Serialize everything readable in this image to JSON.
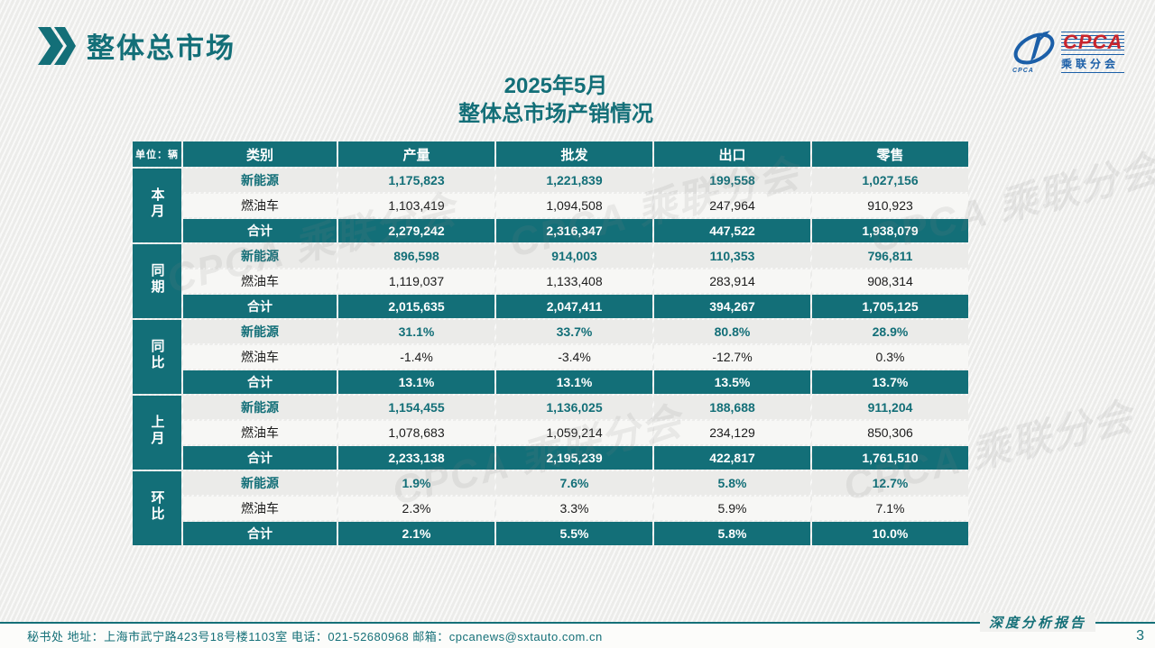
{
  "colors": {
    "teal": "#136f78",
    "nev_text": "#136f78",
    "logo_blue": "#1b5fa8",
    "logo_red": "#c8242c",
    "row_nev_bg": "#ebebe9",
    "row_fuel_bg": "#f7f7f5"
  },
  "header": {
    "page_title": "整体总市场",
    "subtitle_line1": "2025年5月",
    "subtitle_line2": "整体总市场产销情况"
  },
  "logo": {
    "main": "CPCA",
    "sub": "乘联分会",
    "swoosh_caption": "CPCA"
  },
  "watermark": {
    "text": "CPCA 乘联分会"
  },
  "table": {
    "unit_label": "单位：辆",
    "columns": [
      "类别",
      "产量",
      "批发",
      "出口",
      "零售"
    ],
    "groups": [
      {
        "label": "本月",
        "rows": [
          {
            "category": "新能源",
            "style": "nev",
            "values": [
              "1,175,823",
              "1,221,839",
              "199,558",
              "1,027,156"
            ]
          },
          {
            "category": "燃油车",
            "style": "fuel",
            "values": [
              "1,103,419",
              "1,094,508",
              "247,964",
              "910,923"
            ]
          },
          {
            "category": "合计",
            "style": "total",
            "values": [
              "2,279,242",
              "2,316,347",
              "447,522",
              "1,938,079"
            ]
          }
        ]
      },
      {
        "label": "同期",
        "rows": [
          {
            "category": "新能源",
            "style": "nev",
            "values": [
              "896,598",
              "914,003",
              "110,353",
              "796,811"
            ]
          },
          {
            "category": "燃油车",
            "style": "fuel",
            "values": [
              "1,119,037",
              "1,133,408",
              "283,914",
              "908,314"
            ]
          },
          {
            "category": "合计",
            "style": "total",
            "values": [
              "2,015,635",
              "2,047,411",
              "394,267",
              "1,705,125"
            ]
          }
        ]
      },
      {
        "label": "同比",
        "rows": [
          {
            "category": "新能源",
            "style": "nev",
            "values": [
              "31.1%",
              "33.7%",
              "80.8%",
              "28.9%"
            ]
          },
          {
            "category": "燃油车",
            "style": "fuel",
            "values": [
              "-1.4%",
              "-3.4%",
              "-12.7%",
              "0.3%"
            ]
          },
          {
            "category": "合计",
            "style": "total",
            "values": [
              "13.1%",
              "13.1%",
              "13.5%",
              "13.7%"
            ]
          }
        ]
      },
      {
        "label": "上月",
        "rows": [
          {
            "category": "新能源",
            "style": "nev",
            "values": [
              "1,154,455",
              "1,136,025",
              "188,688",
              "911,204"
            ]
          },
          {
            "category": "燃油车",
            "style": "fuel",
            "values": [
              "1,078,683",
              "1,059,214",
              "234,129",
              "850,306"
            ]
          },
          {
            "category": "合计",
            "style": "total",
            "values": [
              "2,233,138",
              "2,195,239",
              "422,817",
              "1,761,510"
            ]
          }
        ]
      },
      {
        "label": "环比",
        "rows": [
          {
            "category": "新能源",
            "style": "nev",
            "values": [
              "1.9%",
              "7.6%",
              "5.8%",
              "12.7%"
            ]
          },
          {
            "category": "燃油车",
            "style": "fuel",
            "values": [
              "2.3%",
              "3.3%",
              "5.9%",
              "7.1%"
            ]
          },
          {
            "category": "合计",
            "style": "total",
            "values": [
              "2.1%",
              "5.5%",
              "5.8%",
              "10.0%"
            ]
          }
        ]
      }
    ]
  },
  "footer": {
    "secretariat_line": "秘书处   地址：上海市武宁路423号18号楼1103室  电话：021-52680968   邮箱：cpcanews@sxtauto.com.cn",
    "side_label": "深度分析报告",
    "page_number": "3"
  }
}
